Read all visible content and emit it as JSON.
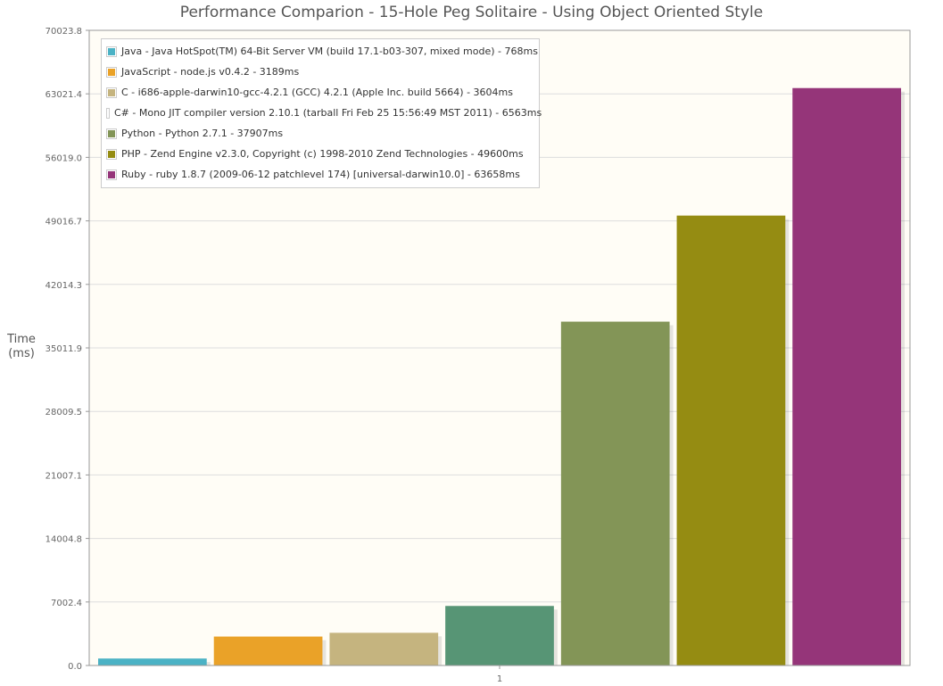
{
  "chart_data": {
    "type": "bar",
    "title": "Performance Comparion - 15-Hole Peg Solitaire - Using Object Oriented Style",
    "ylabel_line1": "Time",
    "ylabel_line2": "(ms)",
    "xlabel": "",
    "categories": [
      "1"
    ],
    "ylim": [
      0,
      70023.8
    ],
    "yticks": [
      "0.0",
      "7002.4",
      "14004.8",
      "21007.1",
      "28009.5",
      "35011.9",
      "42014.3",
      "49016.7",
      "56019.0",
      "63021.4",
      "70023.8"
    ],
    "legend_position": "top-left",
    "grid": true,
    "series": [
      {
        "name": "Java - Java HotSpot(TM) 64-Bit Server VM (build 17.1-b03-307, mixed mode) - 768ms",
        "values": [
          768
        ],
        "color": "#4bb2c5"
      },
      {
        "name": "JavaScript - node.js v0.4.2 - 3189ms",
        "values": [
          3189
        ],
        "color": "#eaa228"
      },
      {
        "name": "C - i686-apple-darwin10-gcc-4.2.1 (GCC) 4.2.1 (Apple Inc. build 5664) - 3604ms",
        "values": [
          3604
        ],
        "color": "#c5b47f"
      },
      {
        "name": "C# - Mono JIT compiler version 2.10.1 (tarball Fri Feb 25 15:56:49 MST 2011) - 6563ms",
        "values": [
          6563
        ],
        "color": "#579575"
      },
      {
        "name": "Python - Python 2.7.1 - 37907ms",
        "values": [
          37907
        ],
        "color": "#839557"
      },
      {
        "name": "PHP - Zend Engine v2.3.0, Copyright (c) 1998-2010 Zend Technologies - 49600ms",
        "values": [
          49600
        ],
        "color": "#958c12"
      },
      {
        "name": "Ruby - ruby 1.8.7 (2009-06-12 patchlevel 174) [universal-darwin10.0] - 63658ms",
        "values": [
          63658
        ],
        "color": "#953579"
      }
    ],
    "colors": {
      "plot_background": "#fffdf6",
      "grid": "#dddddd",
      "border": "#999999"
    }
  }
}
